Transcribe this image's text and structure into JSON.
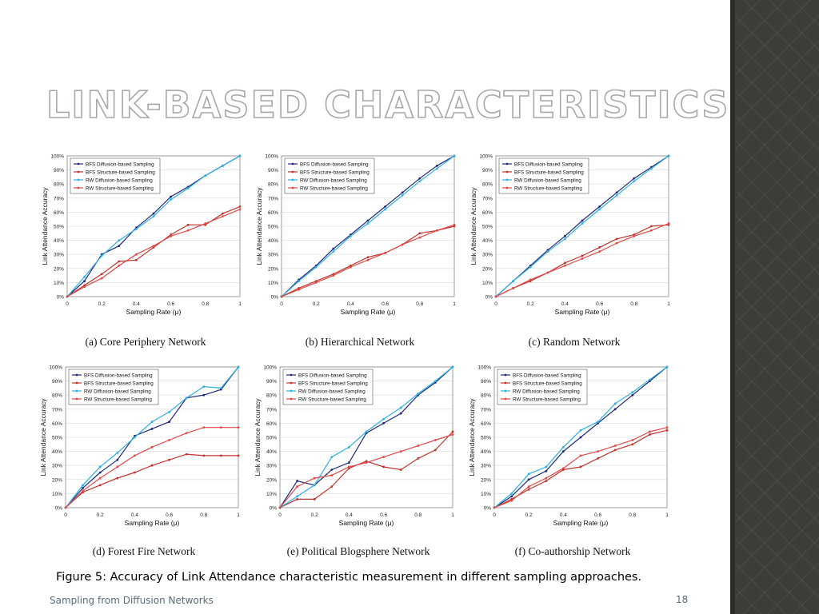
{
  "slide": {
    "title": "LINK-BASED CHARACTERISTICS",
    "figure_caption": "Figure 5: Accuracy of Link Attendance characteristic measurement in different sampling approaches.",
    "footer": "Sampling from Diffusion Networks",
    "page_number": "18"
  },
  "colors": {
    "bfs_diffusion": "#1f2a7a",
    "bfs_structure": "#c0352d",
    "rw_diffusion": "#2eb0e0",
    "rw_structure": "#e04848",
    "side_panel": "#3b3d37"
  },
  "chart_data": [
    {
      "type": "line",
      "caption": "(a) Core Periphery Network",
      "xlabel": "Sampling Rate (μ)",
      "ylabel": "Link Attendance Accuracy",
      "xlim": [
        0,
        1
      ],
      "ylim": [
        0,
        100
      ],
      "xticks": [
        "0",
        "0.2",
        "0.4",
        "0.6",
        "0.8",
        "1"
      ],
      "yticks": [
        "0%",
        "10%",
        "20%",
        "30%",
        "40%",
        "50%",
        "60%",
        "70%",
        "80%",
        "90%",
        "100%"
      ],
      "legend_position": "top-left",
      "series": [
        {
          "name": "BFS Diffusion-based Sampling",
          "x": [
            0,
            0.1,
            0.2,
            0.3,
            0.4,
            0.5,
            0.6,
            0.7,
            0.8,
            0.9,
            1
          ],
          "values": [
            0,
            11,
            30,
            36,
            49,
            59,
            71,
            78,
            86,
            93,
            100
          ]
        },
        {
          "name": "BFS Structure-based Sampling",
          "x": [
            0,
            0.1,
            0.2,
            0.3,
            0.4,
            0.5,
            0.6,
            0.7,
            0.8,
            0.9,
            1
          ],
          "values": [
            0,
            8,
            16,
            25,
            26,
            35,
            44,
            51,
            51,
            59,
            64
          ]
        },
        {
          "name": "RW Diffusion-based Sampling",
          "x": [
            0,
            0.1,
            0.2,
            0.3,
            0.4,
            0.5,
            0.6,
            0.7,
            0.8,
            0.9,
            1
          ],
          "values": [
            0,
            14,
            29,
            40,
            48,
            57,
            69,
            77,
            86,
            93,
            100
          ]
        },
        {
          "name": "RW Structure-based Sampling",
          "x": [
            0,
            0.1,
            0.2,
            0.3,
            0.4,
            0.5,
            0.6,
            0.7,
            0.8,
            0.9,
            1
          ],
          "values": [
            0,
            7,
            13,
            22,
            30,
            36,
            43,
            47,
            52,
            57,
            62
          ]
        }
      ]
    },
    {
      "type": "line",
      "caption": "(b) Hierarchical Network",
      "xlabel": "Sampling Rate (μ)",
      "ylabel": "Link Attendance Accuracy",
      "xlim": [
        0,
        1
      ],
      "ylim": [
        0,
        100
      ],
      "xticks": [
        "0",
        "0.2",
        "0.4",
        "0.6",
        "0.8",
        "1"
      ],
      "yticks": [
        "0%",
        "10%",
        "20%",
        "30%",
        "40%",
        "50%",
        "60%",
        "70%",
        "80%",
        "90%",
        "100%"
      ],
      "legend_position": "top-left",
      "series": [
        {
          "name": "BFS Diffusion-based Sampling",
          "x": [
            0,
            0.1,
            0.2,
            0.3,
            0.4,
            0.5,
            0.6,
            0.7,
            0.8,
            0.9,
            1
          ],
          "values": [
            0,
            12,
            22,
            34,
            44,
            54,
            64,
            74,
            84,
            93,
            100
          ]
        },
        {
          "name": "BFS Structure-based Sampling",
          "x": [
            0,
            0.1,
            0.2,
            0.3,
            0.4,
            0.5,
            0.6,
            0.7,
            0.8,
            0.9,
            1
          ],
          "values": [
            0,
            6,
            11,
            16,
            22,
            28,
            31,
            37,
            45,
            47,
            50
          ]
        },
        {
          "name": "RW Diffusion-based Sampling",
          "x": [
            0,
            0.1,
            0.2,
            0.3,
            0.4,
            0.5,
            0.6,
            0.7,
            0.8,
            0.9,
            1
          ],
          "values": [
            0,
            11,
            21,
            32,
            43,
            52,
            62,
            72,
            82,
            91,
            100
          ]
        },
        {
          "name": "RW Structure-based Sampling",
          "x": [
            0,
            0.1,
            0.2,
            0.3,
            0.4,
            0.5,
            0.6,
            0.7,
            0.8,
            0.9,
            1
          ],
          "values": [
            0,
            5,
            10,
            15,
            21,
            26,
            31,
            37,
            42,
            47,
            51
          ]
        }
      ]
    },
    {
      "type": "line",
      "caption": "(c) Random Network",
      "xlabel": "Sampling Rate (μ)",
      "ylabel": "Link Attendance Accuracy",
      "xlim": [
        0,
        1
      ],
      "ylim": [
        0,
        100
      ],
      "xticks": [
        "0",
        "0.2",
        "0.4",
        "0.6",
        "0.8",
        "1"
      ],
      "yticks": [
        "0%",
        "10%",
        "20%",
        "30%",
        "40%",
        "50%",
        "60%",
        "70%",
        "80%",
        "90%",
        "100%"
      ],
      "legend_position": "top-left",
      "series": [
        {
          "name": "BFS Diffusion-based Sampling",
          "x": [
            0,
            0.1,
            0.2,
            0.3,
            0.4,
            0.5,
            0.6,
            0.7,
            0.8,
            0.9,
            1
          ],
          "values": [
            0,
            11,
            22,
            33,
            43,
            54,
            64,
            74,
            84,
            92,
            100
          ]
        },
        {
          "name": "BFS Structure-based Sampling",
          "x": [
            0,
            0.1,
            0.2,
            0.3,
            0.4,
            0.5,
            0.6,
            0.7,
            0.8,
            0.9,
            1
          ],
          "values": [
            0,
            6,
            11,
            17,
            24,
            29,
            35,
            41,
            44,
            50,
            51
          ]
        },
        {
          "name": "RW Diffusion-based Sampling",
          "x": [
            0,
            0.1,
            0.2,
            0.3,
            0.4,
            0.5,
            0.6,
            0.7,
            0.8,
            0.9,
            1
          ],
          "values": [
            0,
            11,
            21,
            32,
            41,
            52,
            62,
            72,
            82,
            91,
            100
          ]
        },
        {
          "name": "RW Structure-based Sampling",
          "x": [
            0,
            0.1,
            0.2,
            0.3,
            0.4,
            0.5,
            0.6,
            0.7,
            0.8,
            0.9,
            1
          ],
          "values": [
            0,
            6,
            12,
            17,
            22,
            27,
            32,
            38,
            43,
            47,
            52
          ]
        }
      ]
    },
    {
      "type": "line",
      "caption": "(d) Forest Fire Network",
      "xlabel": "Sampling Rate (μ)",
      "ylabel": "Link Attendance Accuracy",
      "xlim": [
        0,
        1
      ],
      "ylim": [
        0,
        100
      ],
      "xticks": [
        "0",
        "0.2",
        "0.4",
        "0.6",
        "0.8",
        "1"
      ],
      "yticks": [
        "0%",
        "10%",
        "20%",
        "30%",
        "40%",
        "50%",
        "60%",
        "70%",
        "80%",
        "90%",
        "100%"
      ],
      "legend_position": "top-left",
      "series": [
        {
          "name": "BFS Diffusion-based Sampling",
          "x": [
            0,
            0.1,
            0.2,
            0.3,
            0.4,
            0.5,
            0.6,
            0.7,
            0.8,
            0.9,
            1
          ],
          "values": [
            0,
            14,
            25,
            34,
            51,
            56,
            61,
            78,
            80,
            84,
            100
          ]
        },
        {
          "name": "BFS Structure-based Sampling",
          "x": [
            0,
            0.1,
            0.2,
            0.3,
            0.4,
            0.5,
            0.6,
            0.7,
            0.8,
            0.9,
            1
          ],
          "values": [
            0,
            11,
            16,
            21,
            25,
            30,
            34,
            38,
            37,
            37,
            37
          ]
        },
        {
          "name": "RW Diffusion-based Sampling",
          "x": [
            0,
            0.1,
            0.2,
            0.3,
            0.4,
            0.5,
            0.6,
            0.7,
            0.8,
            0.9,
            1
          ],
          "values": [
            0,
            16,
            29,
            39,
            50,
            61,
            68,
            78,
            86,
            85,
            100
          ]
        },
        {
          "name": "RW Structure-based Sampling",
          "x": [
            0,
            0.1,
            0.2,
            0.3,
            0.4,
            0.5,
            0.6,
            0.7,
            0.8,
            0.9,
            1
          ],
          "values": [
            0,
            12,
            21,
            29,
            37,
            43,
            48,
            53,
            57,
            57,
            57
          ]
        }
      ]
    },
    {
      "type": "line",
      "caption": "(e) Political Blogsphere Network",
      "xlabel": "Sampling Rate (μ)",
      "ylabel": "Link Attendance Accuracy",
      "xlim": [
        0,
        1
      ],
      "ylim": [
        0,
        100
      ],
      "xticks": [
        "0",
        "0.2",
        "0.4",
        "0.6",
        "0.8",
        "1"
      ],
      "yticks": [
        "0%",
        "10%",
        "20%",
        "30%",
        "40%",
        "50%",
        "60%",
        "70%",
        "80%",
        "90%",
        "100%"
      ],
      "legend_position": "top-left",
      "series": [
        {
          "name": "BFS Diffusion-based Sampling",
          "x": [
            0,
            0.1,
            0.2,
            0.3,
            0.4,
            0.5,
            0.6,
            0.7,
            0.8,
            0.9,
            1
          ],
          "values": [
            0,
            19,
            16,
            27,
            32,
            53,
            60,
            67,
            80,
            89,
            100
          ]
        },
        {
          "name": "BFS Structure-based Sampling",
          "x": [
            0,
            0.1,
            0.2,
            0.3,
            0.4,
            0.5,
            0.6,
            0.7,
            0.8,
            0.9,
            1
          ],
          "values": [
            0,
            6,
            6,
            15,
            28,
            33,
            29,
            27,
            35,
            41,
            54
          ]
        },
        {
          "name": "RW Diffusion-based Sampling",
          "x": [
            0,
            0.1,
            0.2,
            0.3,
            0.4,
            0.5,
            0.6,
            0.7,
            0.8,
            0.9,
            1
          ],
          "values": [
            0,
            8,
            16,
            36,
            43,
            54,
            63,
            71,
            81,
            90,
            100
          ]
        },
        {
          "name": "RW Structure-based Sampling",
          "x": [
            0,
            0.1,
            0.2,
            0.3,
            0.4,
            0.5,
            0.6,
            0.7,
            0.8,
            0.9,
            1
          ],
          "values": [
            0,
            15,
            21,
            23,
            29,
            32,
            36,
            40,
            44,
            48,
            52
          ]
        }
      ]
    },
    {
      "type": "line",
      "caption": "(f) Co-authorship Network",
      "xlabel": "Sampling Rate (μ)",
      "ylabel": "Link Attendance Accuracy",
      "xlim": [
        0,
        1
      ],
      "ylim": [
        0,
        100
      ],
      "xticks": [
        "0",
        "0.2",
        "0.4",
        "0.6",
        "0.8",
        "1"
      ],
      "yticks": [
        "0%",
        "10%",
        "20%",
        "30%",
        "40%",
        "50%",
        "60%",
        "70%",
        "80%",
        "90%",
        "100%"
      ],
      "legend_position": "top-left",
      "series": [
        {
          "name": "BFS Diffusion-based Sampling",
          "x": [
            0,
            0.1,
            0.2,
            0.3,
            0.4,
            0.5,
            0.6,
            0.7,
            0.8,
            0.9,
            1
          ],
          "values": [
            0,
            8,
            20,
            26,
            40,
            50,
            60,
            70,
            80,
            90,
            100
          ]
        },
        {
          "name": "BFS Structure-based Sampling",
          "x": [
            0,
            0.1,
            0.2,
            0.3,
            0.4,
            0.5,
            0.6,
            0.7,
            0.8,
            0.9,
            1
          ],
          "values": [
            0,
            6,
            13,
            19,
            27,
            29,
            35,
            41,
            45,
            52,
            55
          ]
        },
        {
          "name": "RW Diffusion-based Sampling",
          "x": [
            0,
            0.1,
            0.2,
            0.3,
            0.4,
            0.5,
            0.6,
            0.7,
            0.8,
            0.9,
            1
          ],
          "values": [
            0,
            10,
            24,
            29,
            43,
            55,
            61,
            74,
            82,
            91,
            100
          ]
        },
        {
          "name": "RW Structure-based Sampling",
          "x": [
            0,
            0.1,
            0.2,
            0.3,
            0.4,
            0.5,
            0.6,
            0.7,
            0.8,
            0.9,
            1
          ],
          "values": [
            0,
            5,
            15,
            21,
            28,
            37,
            40,
            44,
            48,
            54,
            57
          ]
        }
      ]
    }
  ]
}
